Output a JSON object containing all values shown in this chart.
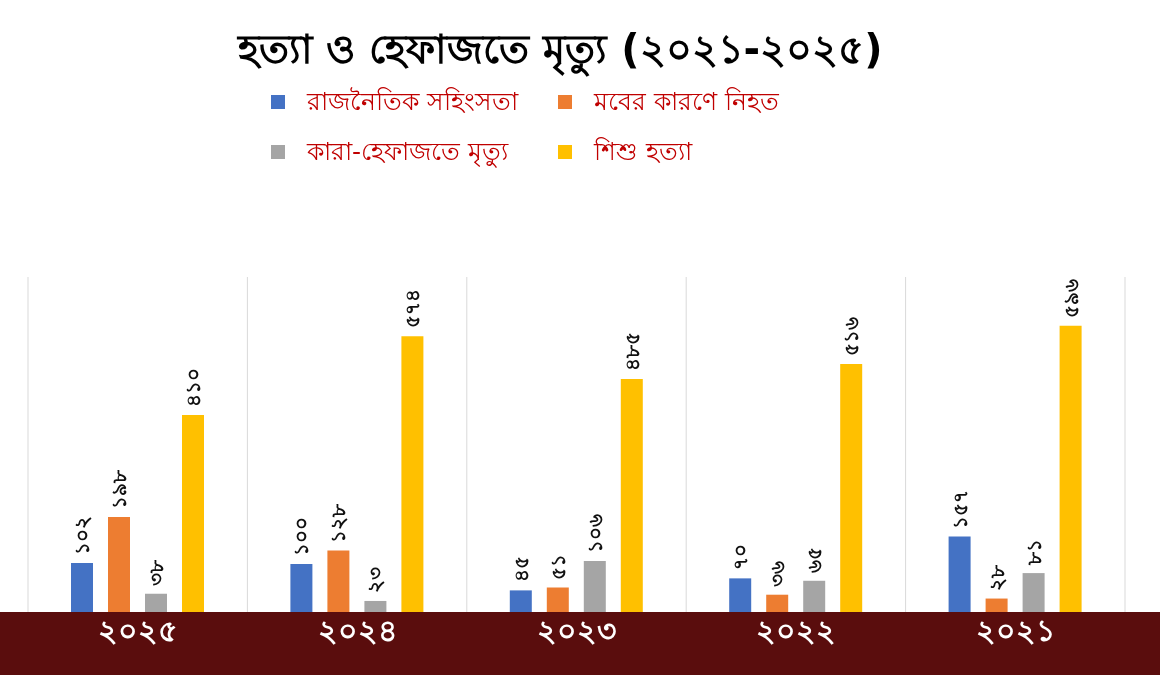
{
  "chart_data": {
    "type": "bar",
    "title": "হত্যা ও হেফাজতে মৃত্যু (২০২১-২০২৫)",
    "categories": [
      "২০২৫",
      "২০২৪",
      "২০২৩",
      "২০২২",
      "২০২১"
    ],
    "series": [
      {
        "name": "রাজনৈতিক সহিংসতা",
        "color": "#4472c4",
        "values": [
          102,
          100,
          45,
          70,
          157
        ],
        "value_labels": [
          "১০২",
          "১০০",
          "৪৫",
          "৭০",
          "১৫৭"
        ]
      },
      {
        "name": "মবের কারণে নিহত",
        "color": "#ed7d31",
        "values": [
          198,
          128,
          51,
          36,
          28
        ],
        "value_labels": [
          "১৯৮",
          "১২৮",
          "৫১",
          "৩৬",
          "২৮"
        ]
      },
      {
        "name": "কারা-হেফাজতে মৃত্যু",
        "color": "#a5a5a5",
        "values": [
          38,
          23,
          106,
          65,
          81
        ],
        "value_labels": [
          "৩৮",
          "২৩",
          "১০৬",
          "৬৫",
          "৮১"
        ]
      },
      {
        "name": "শিশু হত্যা",
        "color": "#ffc000",
        "values": [
          410,
          574,
          485,
          516,
          596
        ],
        "value_labels": [
          "৪১০",
          "৫৭৪",
          "৪৮৫",
          "৫১৬",
          "৫৯৬"
        ]
      }
    ],
    "legend": "top",
    "grid": "x"
  }
}
